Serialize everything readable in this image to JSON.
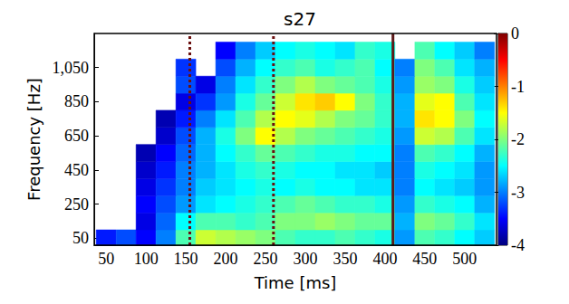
{
  "chart_data": {
    "type": "heatmap",
    "title": "s27",
    "x_label": "Time [ms]",
    "y_label": "Frequency [Hz]",
    "xlim": [
      35,
      540
    ],
    "xticks": [
      50,
      100,
      150,
      200,
      250,
      300,
      350,
      400,
      450,
      500
    ],
    "ylim": [
      10,
      1250
    ],
    "yticks": [
      50,
      250,
      450,
      650,
      850,
      1050
    ],
    "x": [
      50,
      75,
      100,
      125,
      150,
      175,
      200,
      225,
      250,
      275,
      300,
      325,
      350,
      375,
      400,
      425,
      450,
      475,
      500,
      525
    ],
    "y": [
      50,
      150,
      250,
      350,
      450,
      550,
      650,
      750,
      850,
      950,
      1050,
      1150
    ],
    "values": [
      [
        -3.4,
        -3.2,
        -3.5,
        -3.0,
        -2.2,
        -1.7,
        -1.8,
        -1.9,
        -2.0,
        -2.2,
        -2.3,
        -2.3,
        -2.2,
        -2.3,
        -2.4,
        -2.9,
        -2.2,
        -2.3,
        -2.5,
        -2.7
      ],
      [
        null,
        null,
        -3.6,
        -3.1,
        -2.5,
        -2.2,
        -2.2,
        -2.3,
        -2.2,
        -2.0,
        -2.0,
        -1.9,
        -2.0,
        -2.1,
        -2.1,
        -2.8,
        -2.0,
        -2.1,
        -2.3,
        -2.6
      ],
      [
        null,
        null,
        -3.5,
        -3.2,
        -2.9,
        -2.6,
        -2.5,
        -2.4,
        -2.3,
        -2.2,
        -2.1,
        -2.2,
        -2.3,
        -2.3,
        -2.4,
        -2.9,
        -2.3,
        -2.4,
        -2.5,
        -2.8
      ],
      [
        null,
        null,
        -3.6,
        -3.3,
        -3.0,
        -2.7,
        -2.6,
        -2.5,
        -2.4,
        -2.5,
        -2.4,
        -2.5,
        -2.5,
        -2.6,
        -2.6,
        -3.0,
        -2.5,
        -2.6,
        -2.7,
        -2.9
      ],
      [
        null,
        null,
        -3.7,
        -3.4,
        -3.0,
        -2.8,
        -2.6,
        -2.4,
        -2.3,
        -2.4,
        -2.5,
        -2.5,
        -2.6,
        -2.6,
        -2.7,
        -3.0,
        -2.4,
        -2.5,
        -2.6,
        -2.9
      ],
      [
        null,
        null,
        -3.8,
        -3.5,
        -3.1,
        -2.8,
        -2.5,
        -2.3,
        -2.1,
        -2.2,
        -2.3,
        -2.4,
        -2.4,
        -2.5,
        -2.5,
        -3.0,
        -2.2,
        -2.3,
        -2.5,
        -2.8
      ],
      [
        null,
        null,
        null,
        -3.7,
        -3.2,
        -2.8,
        -2.4,
        -2.0,
        -1.5,
        -1.8,
        -2.0,
        -2.1,
        -2.2,
        -2.3,
        -2.4,
        -2.9,
        -1.7,
        -1.8,
        -2.2,
        -2.6
      ],
      [
        null,
        null,
        null,
        -3.8,
        -3.4,
        -3.0,
        -2.6,
        -2.2,
        -1.8,
        -1.5,
        -1.6,
        -1.8,
        -2.0,
        -2.1,
        -2.3,
        -2.8,
        -1.4,
        -1.5,
        -2.0,
        -2.5
      ],
      [
        null,
        null,
        null,
        null,
        -3.6,
        -3.3,
        -2.9,
        -2.4,
        -2.1,
        -1.7,
        -1.4,
        -1.3,
        -1.5,
        -2.0,
        -2.3,
        -2.8,
        -1.6,
        -1.5,
        -2.2,
        -2.6
      ],
      [
        null,
        null,
        null,
        null,
        -3.2,
        -3.6,
        -3.0,
        -2.6,
        -2.3,
        -2.0,
        -1.8,
        -2.0,
        -2.1,
        -2.2,
        -2.4,
        -2.9,
        -1.9,
        -2.0,
        -2.4,
        -2.7
      ],
      [
        null,
        null,
        null,
        null,
        -3.3,
        null,
        -3.2,
        -2.8,
        -2.5,
        -2.3,
        -2.2,
        -2.4,
        -2.3,
        -2.2,
        -2.5,
        -3.0,
        -2.0,
        -2.2,
        -2.6,
        -2.8
      ],
      [
        null,
        null,
        null,
        null,
        null,
        null,
        -3.5,
        -3.0,
        -2.7,
        -2.5,
        -2.4,
        -2.5,
        -2.6,
        -2.3,
        -2.4,
        null,
        -2.2,
        -2.5,
        -2.7,
        -3.0
      ]
    ],
    "colorbar": {
      "range": [
        -4,
        0
      ],
      "ticks": [
        0,
        -1,
        -2,
        -3,
        -4
      ]
    },
    "vlines": [
      {
        "x": 155,
        "line_style": "dotted",
        "color": "#6b0f0f"
      },
      {
        "x": 260,
        "line_style": "dotted",
        "color": "#6b0f0f"
      },
      {
        "x": 410,
        "line_style": "solid",
        "color": "#5c1a1a"
      }
    ]
  }
}
